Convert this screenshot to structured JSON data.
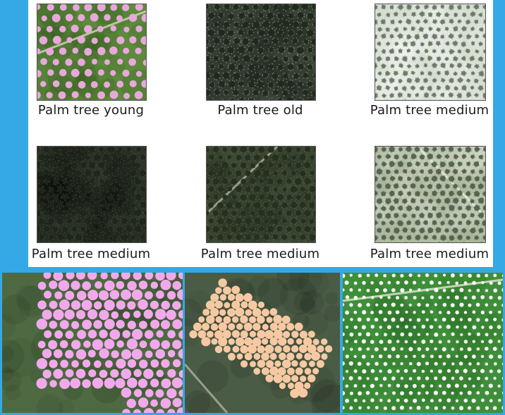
{
  "samples": [
    {
      "caption": "Palm tree young",
      "style": "young",
      "dot": "#e8a8dc",
      "bg": "#5d8a3c"
    },
    {
      "caption": "Palm tree old",
      "style": "old",
      "bg": "#3c4638"
    },
    {
      "caption": "Palm tree medium",
      "style": "light",
      "bg": "#d6ddd2"
    },
    {
      "caption": "Palm tree medium",
      "style": "dark",
      "bg": "#2e3528"
    },
    {
      "caption": "Palm tree medium",
      "style": "dark2",
      "bg": "#3e4a36"
    },
    {
      "caption": "Palm tree medium",
      "style": "light2",
      "bg": "#a9b59c"
    }
  ],
  "annotations": [
    {
      "name": "pink-annotated-tile",
      "dot": "#f2a9ec",
      "bg": "#4e6a42"
    },
    {
      "name": "peach-annotated-tile",
      "dot": "#f6c9a3",
      "bg": "#4a5c46"
    },
    {
      "name": "white-annotated-tile",
      "dot": "#f4f6f2",
      "bg": "#3f8f3a"
    }
  ]
}
